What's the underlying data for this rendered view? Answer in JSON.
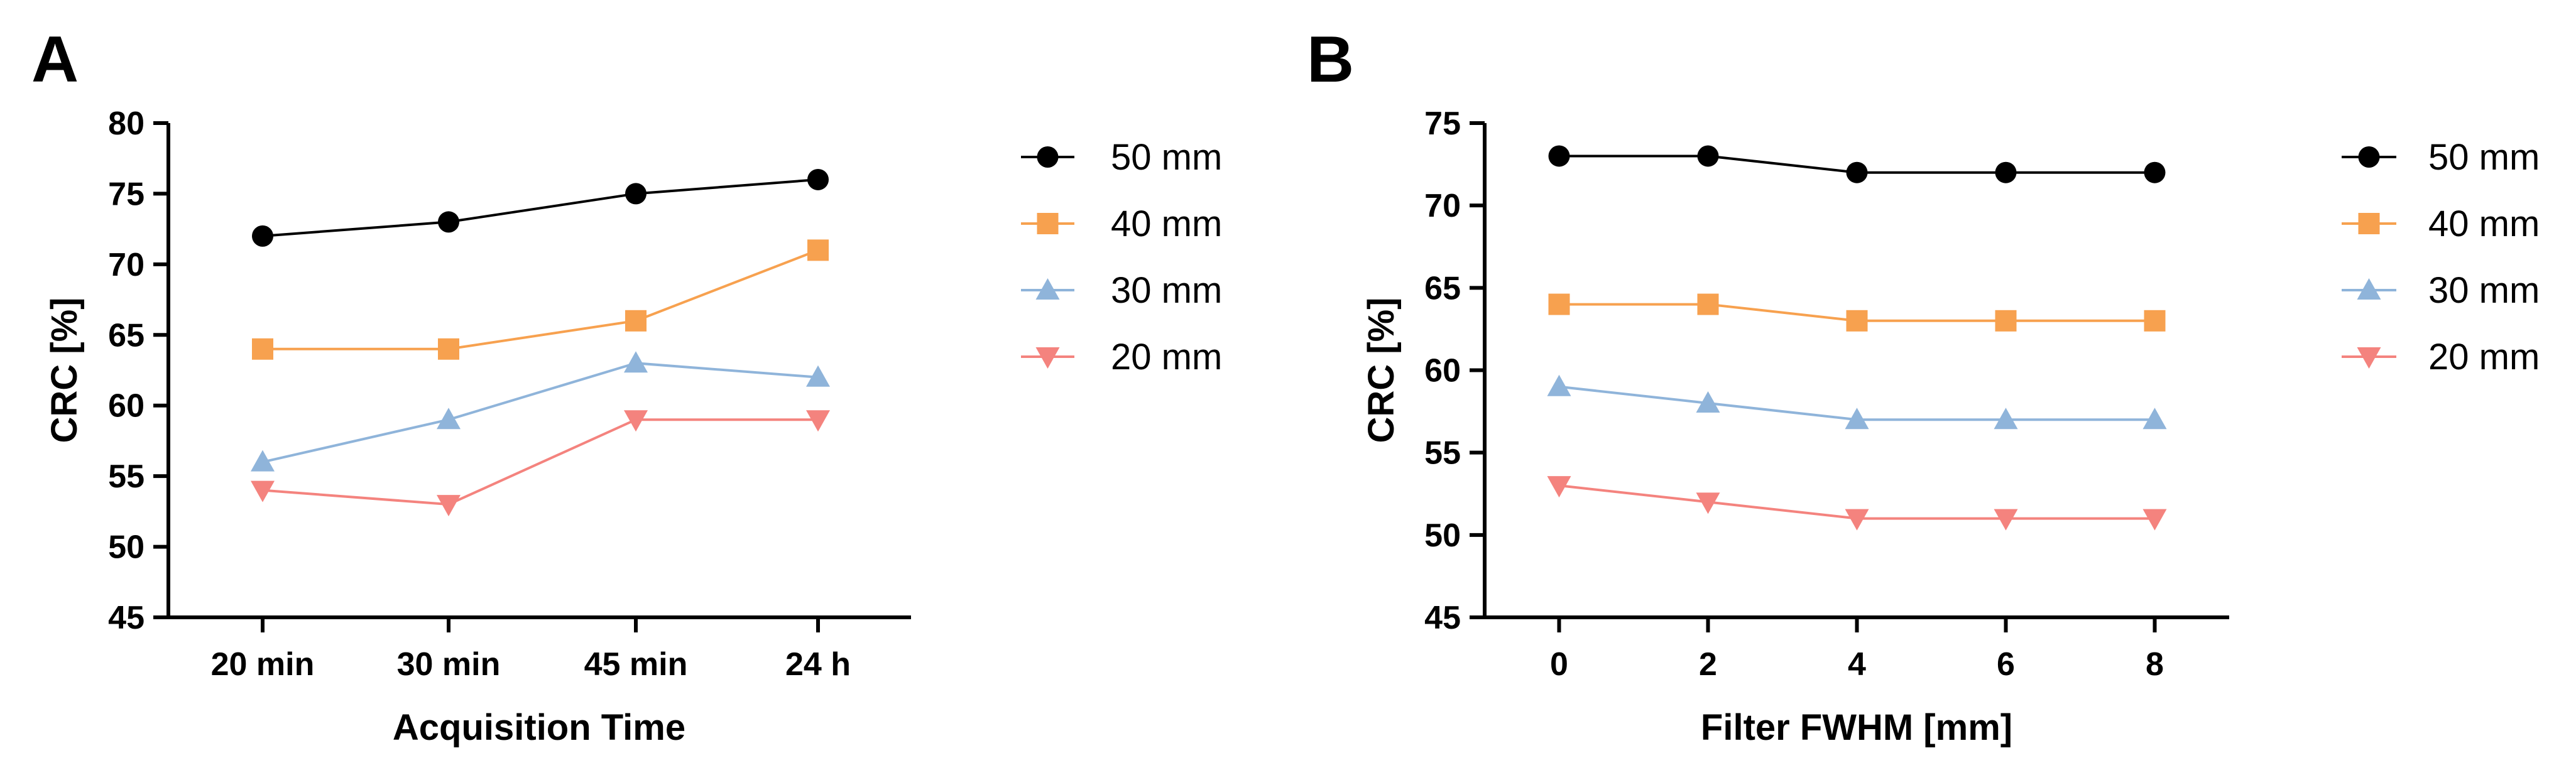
{
  "chart_data": [
    {
      "type": "line",
      "panel_label": "A",
      "xlabel": "Acquisition  Time",
      "ylabel": "CRC [%]",
      "categories": [
        "20 min",
        "30 min",
        "45 min",
        "24 h"
      ],
      "ylim": [
        45,
        80
      ],
      "yticks": [
        45,
        50,
        55,
        60,
        65,
        70,
        75,
        80
      ],
      "grid": false,
      "legend_position": "right",
      "series": [
        {
          "name": "50 mm",
          "marker": "circle",
          "color": "#000000",
          "values": [
            72,
            73,
            75,
            76
          ]
        },
        {
          "name": "40 mm",
          "marker": "square",
          "color": "#F7A14F",
          "values": [
            64,
            64,
            66,
            71
          ]
        },
        {
          "name": "30 mm",
          "marker": "triangle-up",
          "color": "#8FB4DA",
          "values": [
            56,
            59,
            63,
            62
          ]
        },
        {
          "name": "20 mm",
          "marker": "triangle-down",
          "color": "#F4837E",
          "values": [
            54,
            53,
            59,
            59
          ]
        }
      ]
    },
    {
      "type": "line",
      "panel_label": "B",
      "xlabel": "Filter FWHM [mm]",
      "ylabel": "CRC [%]",
      "x": [
        0,
        2,
        4,
        6,
        8
      ],
      "xticks": [
        0,
        2,
        4,
        6,
        8
      ],
      "xlim": [
        -1,
        9
      ],
      "ylim": [
        45,
        75
      ],
      "yticks": [
        45,
        50,
        55,
        60,
        65,
        70,
        75
      ],
      "grid": false,
      "legend_position": "right",
      "series": [
        {
          "name": "50 mm",
          "marker": "circle",
          "color": "#000000",
          "values": [
            73,
            73,
            72,
            72,
            72
          ]
        },
        {
          "name": "40 mm",
          "marker": "square",
          "color": "#F7A14F",
          "values": [
            64,
            64,
            63,
            63,
            63
          ]
        },
        {
          "name": "30 mm",
          "marker": "triangle-up",
          "color": "#8FB4DA",
          "values": [
            59,
            58,
            57,
            57,
            57
          ]
        },
        {
          "name": "20 mm",
          "marker": "triangle-down",
          "color": "#F4837E",
          "values": [
            53,
            52,
            51,
            51,
            51
          ]
        }
      ]
    }
  ]
}
